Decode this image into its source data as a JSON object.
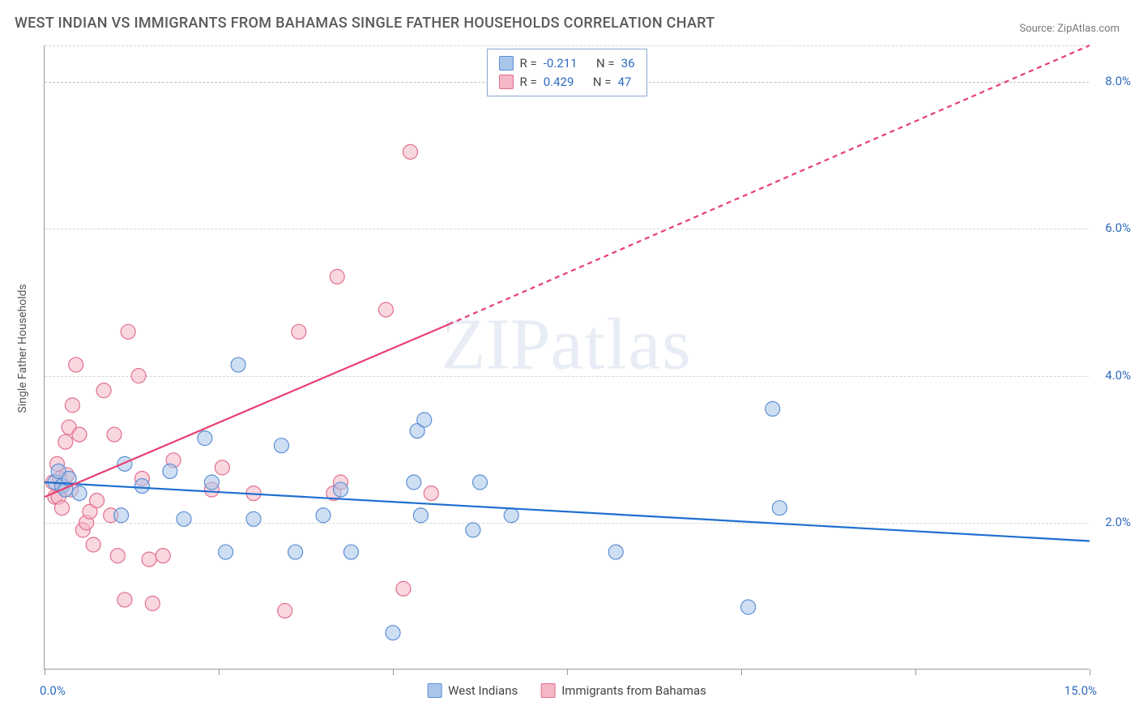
{
  "title": "WEST INDIAN VS IMMIGRANTS FROM BAHAMAS SINGLE FATHER HOUSEHOLDS CORRELATION CHART",
  "source_label": "Source: ZipAtlas.com",
  "y_axis_label": "Single Father Households",
  "watermark": "ZIPatlas",
  "chart": {
    "type": "scatter",
    "xlim": [
      0,
      15
    ],
    "ylim": [
      0,
      8.5
    ],
    "x_tick_labels": {
      "min": "0.0%",
      "max": "15.0%"
    },
    "x_tick_positions": [
      0,
      2.5,
      5,
      7.5,
      10,
      12.5,
      15
    ],
    "y_ticks": [
      {
        "v": 2.0,
        "label": "2.0%"
      },
      {
        "v": 4.0,
        "label": "4.0%"
      },
      {
        "v": 6.0,
        "label": "6.0%"
      },
      {
        "v": 8.0,
        "label": "8.0%"
      }
    ],
    "grid_color": "#d8d8d8",
    "axis_color": "#999999",
    "background_color": "#ffffff",
    "marker_radius": 9,
    "marker_opacity": 0.55,
    "line_width": 2.2
  },
  "series": [
    {
      "name": "West Indians",
      "fill": "#a8c5ea",
      "stroke": "#5c8fd6",
      "line_color": "#1f6fd0",
      "r_label": "R = ",
      "r_value": "-0.211",
      "n_label": "N = ",
      "n_value": "36",
      "trend": {
        "x1": 0,
        "y1": 2.55,
        "x2": 15,
        "y2": 1.75,
        "dash": false
      },
      "points": [
        [
          0.15,
          2.55
        ],
        [
          0.2,
          2.7
        ],
        [
          0.25,
          2.5
        ],
        [
          0.3,
          2.45
        ],
        [
          0.35,
          2.6
        ],
        [
          0.5,
          2.4
        ],
        [
          1.1,
          2.1
        ],
        [
          1.15,
          2.8
        ],
        [
          1.4,
          2.5
        ],
        [
          1.8,
          2.7
        ],
        [
          2.0,
          2.05
        ],
        [
          2.3,
          3.15
        ],
        [
          2.4,
          2.55
        ],
        [
          2.6,
          1.6
        ],
        [
          2.78,
          4.15
        ],
        [
          3.0,
          2.05
        ],
        [
          3.4,
          3.05
        ],
        [
          3.6,
          1.6
        ],
        [
          4.0,
          2.1
        ],
        [
          4.25,
          2.45
        ],
        [
          4.4,
          1.6
        ],
        [
          5.0,
          0.5
        ],
        [
          5.3,
          2.55
        ],
        [
          5.35,
          3.25
        ],
        [
          5.4,
          2.1
        ],
        [
          5.45,
          3.4
        ],
        [
          6.15,
          1.9
        ],
        [
          6.25,
          2.55
        ],
        [
          6.7,
          2.1
        ],
        [
          8.2,
          1.6
        ],
        [
          10.1,
          0.85
        ],
        [
          10.45,
          3.55
        ],
        [
          10.55,
          2.2
        ]
      ]
    },
    {
      "name": "Immigrants from Bahamas",
      "fill": "#f4b7c5",
      "stroke": "#e26f8e",
      "line_color": "#e83e70",
      "r_label": "R = ",
      "r_value": "0.429",
      "n_label": "N = ",
      "n_value": "47",
      "trend": {
        "x1": 0,
        "y1": 2.35,
        "x2": 5.8,
        "y2": 4.7,
        "dash": false
      },
      "trend_ext": {
        "x1": 5.8,
        "y1": 4.7,
        "x2": 15,
        "y2": 8.5,
        "dash": true
      },
      "points": [
        [
          0.12,
          2.55
        ],
        [
          0.15,
          2.35
        ],
        [
          0.18,
          2.8
        ],
        [
          0.2,
          2.35
        ],
        [
          0.22,
          2.6
        ],
        [
          0.25,
          2.2
        ],
        [
          0.3,
          3.1
        ],
        [
          0.32,
          2.65
        ],
        [
          0.35,
          3.3
        ],
        [
          0.38,
          2.45
        ],
        [
          0.4,
          3.6
        ],
        [
          0.45,
          4.15
        ],
        [
          0.5,
          3.2
        ],
        [
          0.55,
          1.9
        ],
        [
          0.6,
          2.0
        ],
        [
          0.65,
          2.15
        ],
        [
          0.7,
          1.7
        ],
        [
          0.75,
          2.3
        ],
        [
          0.85,
          3.8
        ],
        [
          0.95,
          2.1
        ],
        [
          1.0,
          3.2
        ],
        [
          1.05,
          1.55
        ],
        [
          1.15,
          0.95
        ],
        [
          1.2,
          4.6
        ],
        [
          1.35,
          4.0
        ],
        [
          1.4,
          2.6
        ],
        [
          1.5,
          1.5
        ],
        [
          1.55,
          0.9
        ],
        [
          1.7,
          1.55
        ],
        [
          1.85,
          2.85
        ],
        [
          2.4,
          2.45
        ],
        [
          2.55,
          2.75
        ],
        [
          3.0,
          2.4
        ],
        [
          3.45,
          0.8
        ],
        [
          3.65,
          4.6
        ],
        [
          4.15,
          2.4
        ],
        [
          4.2,
          5.35
        ],
        [
          4.25,
          2.55
        ],
        [
          4.9,
          4.9
        ],
        [
          5.15,
          1.1
        ],
        [
          5.25,
          7.05
        ],
        [
          5.55,
          2.4
        ]
      ]
    }
  ],
  "bottom_legend": [
    {
      "label": "West Indians",
      "fill": "#a8c5ea",
      "stroke": "#5c8fd6"
    },
    {
      "label": "Immigrants from Bahamas",
      "fill": "#f4b7c5",
      "stroke": "#e26f8e"
    }
  ]
}
